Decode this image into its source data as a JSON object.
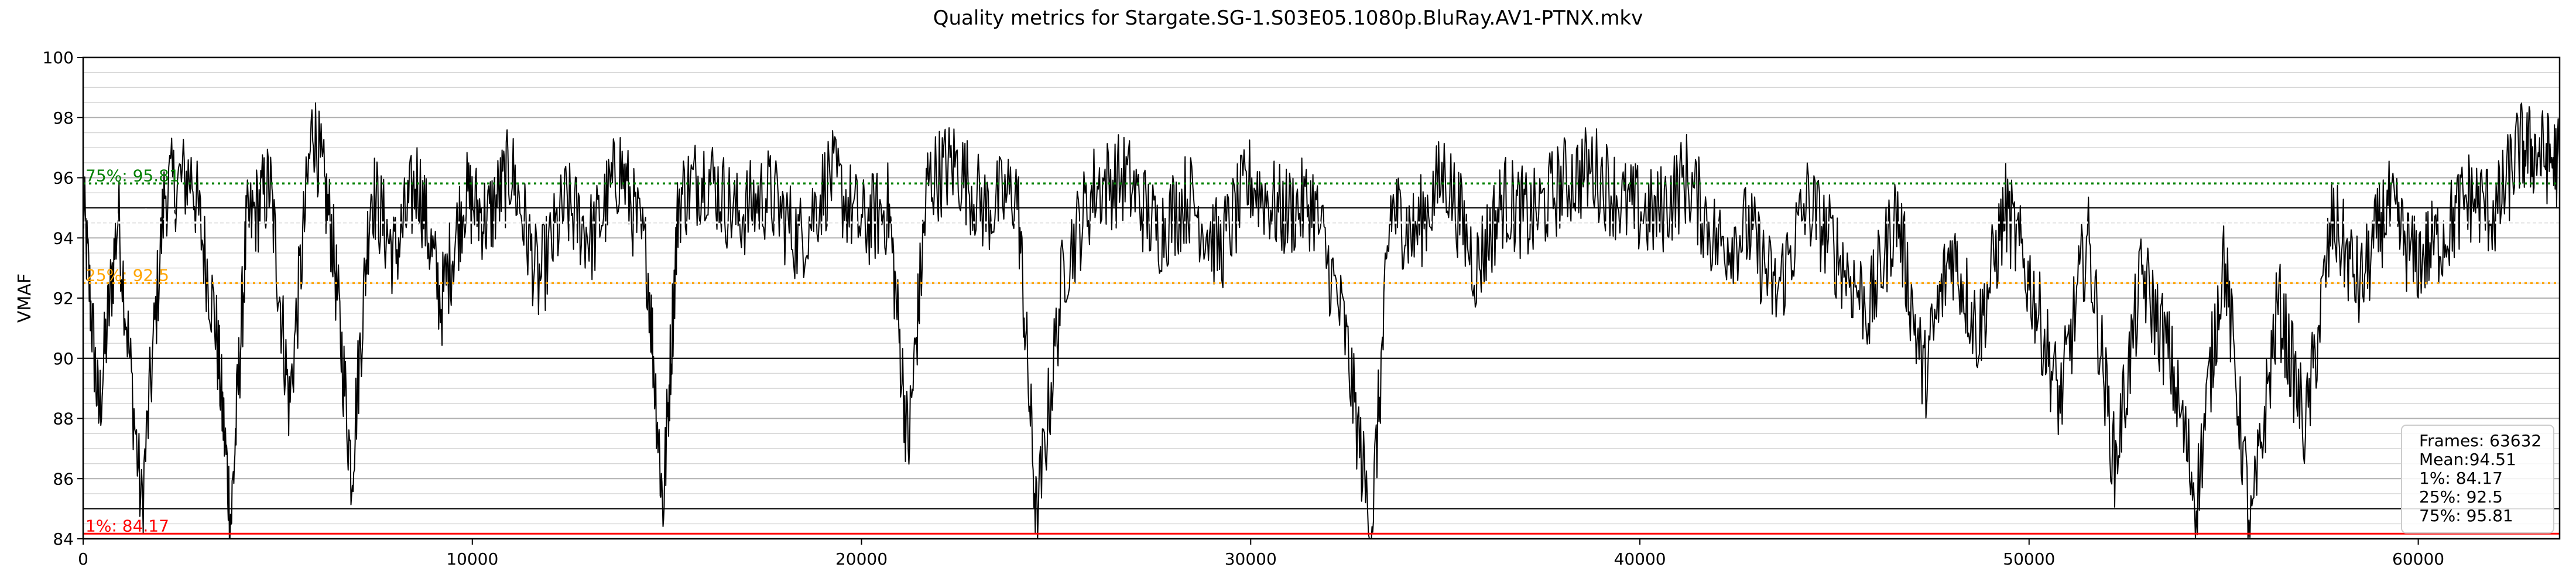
{
  "chart_data": {
    "type": "line",
    "title": "Quality metrics for Stargate.SG-1.S03E05.1080p.BluRay.AV1-PTNX.mkv",
    "xlabel": "",
    "ylabel": "VMAF",
    "xlim": [
      0,
      63632
    ],
    "ylim": [
      84,
      100
    ],
    "x_ticks": [
      0,
      10000,
      20000,
      30000,
      40000,
      50000,
      60000
    ],
    "y_ticks": [
      84,
      86,
      88,
      90,
      92,
      94,
      96,
      98,
      100
    ],
    "grid": true,
    "series": [
      {
        "color": "#000000",
        "x": [
          0,
          400,
          900,
          1500,
          2100,
          2800,
          3400,
          3800,
          4200,
          4800,
          5300,
          5900,
          6400,
          6900,
          7400,
          8000,
          8600,
          9200,
          9800,
          10400,
          11000,
          11700,
          12400,
          13100,
          13800,
          14500,
          14900,
          15300,
          16000,
          16800,
          17600,
          18400,
          19200,
          20000,
          20700,
          21200,
          21700,
          22400,
          23200,
          24000,
          24500,
          25200,
          26000,
          26800,
          27600,
          28400,
          29200,
          30000,
          30800,
          31600,
          32400,
          33100,
          33600,
          34200,
          35000,
          35800,
          36500,
          37200,
          38000,
          38800,
          39600,
          40400,
          41200,
          42000,
          42800,
          43500,
          44300,
          45100,
          45900,
          46600,
          47300,
          48000,
          48700,
          49400,
          50100,
          50800,
          51500,
          52200,
          52900,
          53600,
          54300,
          55000,
          55700,
          56400,
          57100,
          57800,
          58500,
          59200,
          59900,
          60600,
          61300,
          62000,
          62600,
          63100,
          63632
        ],
        "y": [
          95.2,
          88.1,
          94.8,
          85.0,
          95.6,
          96.1,
          91.2,
          84.6,
          94.3,
          95.8,
          88.4,
          97.9,
          94.1,
          86.2,
          95.7,
          93.4,
          96.0,
          91.8,
          95.4,
          94.6,
          96.3,
          92.5,
          95.1,
          94.0,
          96.4,
          93.2,
          85.0,
          95.3,
          96.2,
          94.7,
          95.5,
          93.9,
          96.1,
          94.4,
          95.0,
          87.0,
          95.9,
          96.5,
          94.9,
          95.6,
          84.5,
          93.1,
          95.7,
          96.0,
          94.2,
          95.4,
          93.6,
          95.9,
          94.8,
          95.2,
          91.0,
          84.2,
          95.0,
          94.1,
          96.2,
          93.0,
          95.3,
          94.6,
          95.8,
          96.3,
          95.1,
          94.7,
          96.0,
          93.8,
          94.3,
          92.1,
          95.2,
          93.4,
          91.6,
          94.9,
          89.3,
          93.7,
          90.8,
          95.0,
          92.2,
          88.5,
          94.1,
          86.4,
          92.8,
          90.1,
          85.3,
          93.5,
          84.2,
          91.9,
          87.6,
          94.6,
          92.3,
          95.1,
          93.2,
          94.0,
          95.4,
          94.8,
          97.0,
          96.8,
          96.5
        ]
      }
    ],
    "reference_lines": [
      {
        "label": "75%: 95.81",
        "value": 95.81,
        "color": "#008000",
        "style": "dotted"
      },
      {
        "label": "Mean: 94.51",
        "value": 94.51,
        "color": "#ffffff",
        "style": "dotted"
      },
      {
        "label": "25%: 92.5",
        "value": 92.5,
        "color": "#ffa500",
        "style": "dotted"
      },
      {
        "label": "1%: 84.17",
        "value": 84.17,
        "color": "#ff0000",
        "style": "solid"
      }
    ],
    "stats_box": [
      "Frames: 63632",
      "Mean:94.51",
      "1%: 84.17",
      "25%: 92.5",
      "75%: 95.81"
    ],
    "stats_box_placement": "bottom-right"
  }
}
